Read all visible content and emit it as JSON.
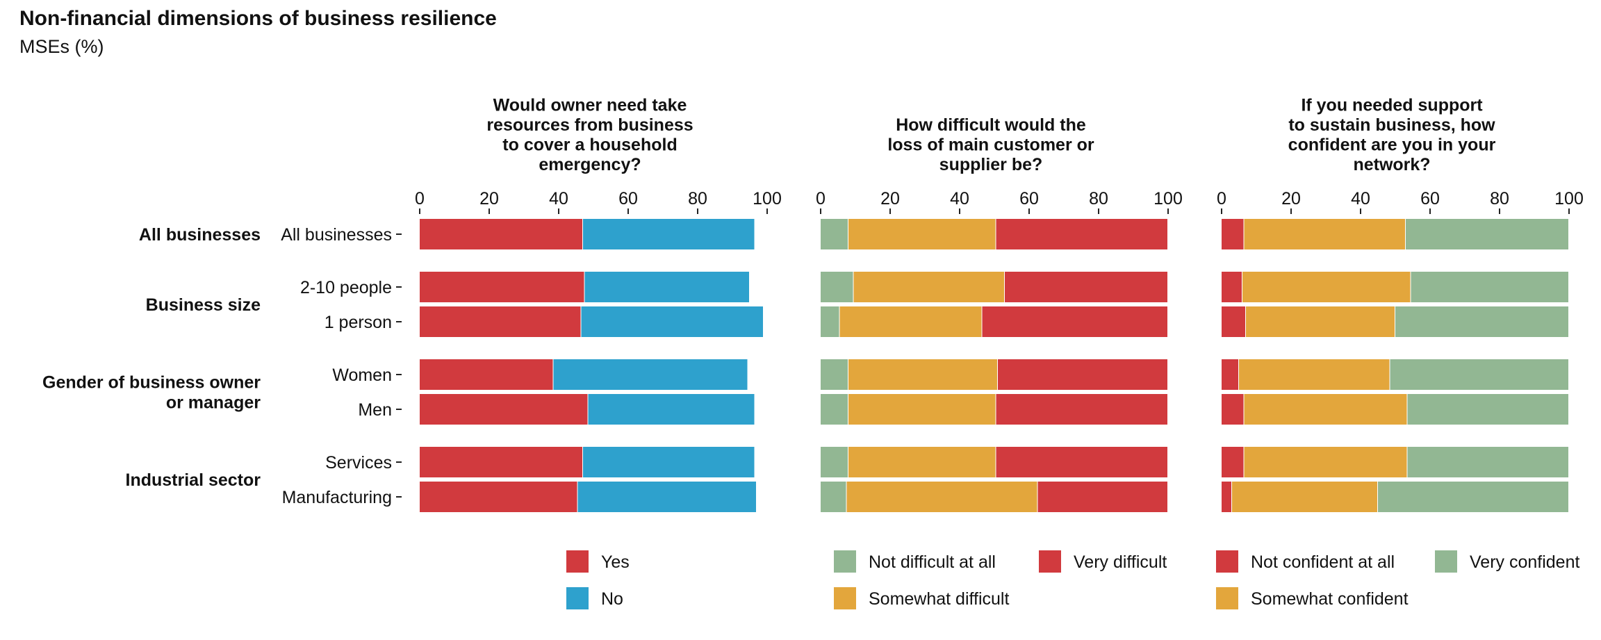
{
  "header": {
    "title": "Non-financial dimensions of business resilience",
    "subtitle": "MSEs (%)"
  },
  "chart_data": {
    "type": "bar",
    "orientation": "horizontal",
    "stacked": true,
    "xlim": [
      0,
      100
    ],
    "xticks": [
      0,
      20,
      40,
      60,
      80,
      100
    ],
    "grid": false,
    "legend_position": "bottom",
    "groups": [
      {
        "label": "All businesses",
        "rows": [
          "All businesses"
        ]
      },
      {
        "label": "Business size",
        "rows": [
          "2-10 people",
          "1 person"
        ]
      },
      {
        "label": "Gender of business owner or manager",
        "rows": [
          "Women",
          "Men"
        ]
      },
      {
        "label": "Industrial sector",
        "rows": [
          "Services",
          "Manufacturing"
        ]
      }
    ],
    "categories": [
      "All businesses",
      "2-10 people",
      "1 person",
      "Women",
      "Men",
      "Services",
      "Manufacturing"
    ],
    "panels": [
      {
        "title": "Would owner need take resources from business to cover a household emergency?",
        "series": [
          {
            "name": "Yes",
            "color": "#D13A3E",
            "values": [
              47,
              47.5,
              46.5,
              38.5,
              48.5,
              47,
              45.5
            ]
          },
          {
            "name": "No",
            "color": "#2EA1CD",
            "values": [
              49.5,
              47.5,
              52.5,
              56,
              48,
              49.5,
              51.5
            ]
          }
        ],
        "legend": [
          [
            "Yes"
          ],
          [
            "No"
          ]
        ]
      },
      {
        "title": "How difficult would the loss of main customer or supplier be?",
        "series": [
          {
            "name": "Not difficult at all",
            "color": "#92B793",
            "values": [
              8,
              9.5,
              5.5,
              8,
              8,
              8,
              7.5
            ]
          },
          {
            "name": "Somewhat difficult",
            "color": "#E3A63C",
            "values": [
              42.5,
              43.5,
              41,
              43,
              42.5,
              42.5,
              55
            ]
          },
          {
            "name": "Very difficult",
            "color": "#D13A3E",
            "values": [
              49.5,
              47,
              53.5,
              49,
              49.5,
              49.5,
              37.5
            ]
          }
        ],
        "legend": [
          [
            "Not difficult at all",
            "Very difficult"
          ],
          [
            "Somewhat difficult"
          ]
        ]
      },
      {
        "title": "If you needed support to sustain business, how confident are you in your network?",
        "series": [
          {
            "name": "Not confident at all",
            "color": "#D13A3E",
            "values": [
              6.5,
              6,
              7,
              5,
              6.5,
              6.5,
              3
            ]
          },
          {
            "name": "Somewhat confident",
            "color": "#E3A63C",
            "values": [
              46.5,
              48.5,
              43,
              43.5,
              47,
              47,
              42
            ]
          },
          {
            "name": "Very confident",
            "color": "#92B793",
            "values": [
              47,
              45.5,
              50,
              51.5,
              46.5,
              46.5,
              55
            ]
          }
        ],
        "legend": [
          [
            "Not confident at all",
            "Very confident"
          ],
          [
            "Somewhat confident"
          ]
        ]
      }
    ]
  }
}
